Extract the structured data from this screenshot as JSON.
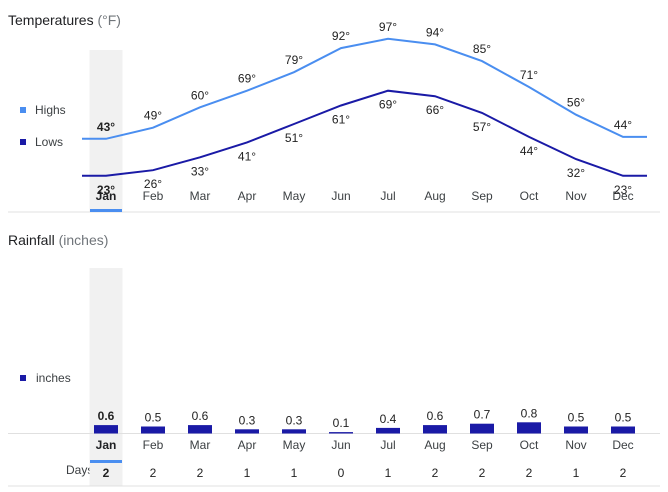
{
  "temperatures": {
    "title": "Temperatures",
    "unit": "(°F)",
    "legend": {
      "highs_label": "Highs",
      "lows_label": "Lows"
    },
    "colors": {
      "highs": "#4a8ef0",
      "lows": "#1a1aa6",
      "selection": "#f1f1f1",
      "underline": "#4a8ef0"
    }
  },
  "rainfall": {
    "title": "Rainfall",
    "unit": "(inches)",
    "legend": {
      "inches_label": "inches"
    },
    "days_title": "Days",
    "colors": {
      "bars": "#1a1aa6"
    }
  },
  "selected_month": "Jan",
  "chart_data": [
    {
      "type": "line",
      "title": "Temperatures (°F)",
      "categories": [
        "Jan",
        "Feb",
        "Mar",
        "Apr",
        "May",
        "Jun",
        "Jul",
        "Aug",
        "Sep",
        "Oct",
        "Nov",
        "Dec"
      ],
      "series": [
        {
          "name": "Highs",
          "values": [
            43,
            49,
            60,
            69,
            79,
            92,
            97,
            94,
            85,
            71,
            56,
            44
          ]
        },
        {
          "name": "Lows",
          "values": [
            23,
            26,
            33,
            41,
            51,
            61,
            69,
            66,
            57,
            44,
            32,
            23
          ]
        }
      ],
      "value_suffix": "°",
      "legend_position": "left",
      "grid": false
    },
    {
      "type": "bar",
      "title": "Rainfall (inches)",
      "categories": [
        "Jan",
        "Feb",
        "Mar",
        "Apr",
        "May",
        "Jun",
        "Jul",
        "Aug",
        "Sep",
        "Oct",
        "Nov",
        "Dec"
      ],
      "series": [
        {
          "name": "inches",
          "values": [
            0.6,
            0.5,
            0.6,
            0.3,
            0.3,
            0.1,
            0.4,
            0.6,
            0.7,
            0.8,
            0.5,
            0.5
          ]
        }
      ],
      "days": [
        2,
        2,
        2,
        1,
        1,
        0,
        1,
        2,
        2,
        2,
        1,
        2
      ],
      "legend_position": "left",
      "grid": false
    }
  ]
}
